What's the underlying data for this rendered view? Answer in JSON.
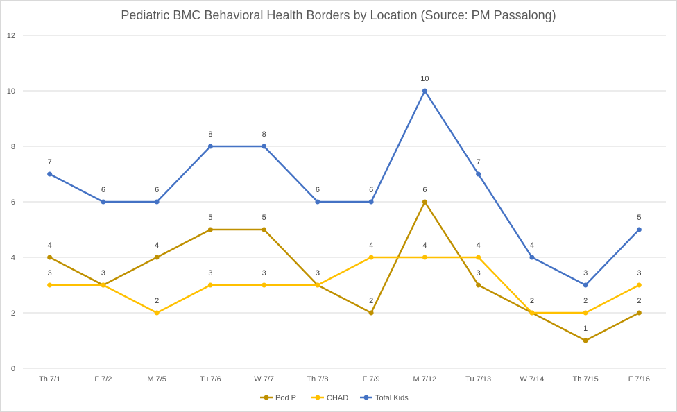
{
  "chart_data": {
    "type": "line",
    "title": "Pediatric BMC Behavioral Health Borders by Location (Source: PM Passalong)",
    "xlabel": "",
    "ylabel": "",
    "ylim": [
      0,
      12
    ],
    "yticks": [
      0,
      2,
      4,
      6,
      8,
      10,
      12
    ],
    "grid": true,
    "legend": "bottom",
    "categories": [
      "Th 7/1",
      "F 7/2",
      "M 7/5",
      "Tu 7/6",
      "W 7/7",
      "Th 7/8",
      "F 7/9",
      "M 7/12",
      "Tu 7/13",
      "W 7/14",
      "Th 7/15",
      "F 7/16"
    ],
    "series": [
      {
        "name": "Pod P",
        "color": "#bf9000",
        "values": [
          4,
          3,
          4,
          5,
          5,
          3,
          2,
          6,
          3,
          2,
          1,
          2
        ]
      },
      {
        "name": "CHAD",
        "color": "#ffc000",
        "values": [
          3,
          3,
          2,
          3,
          3,
          3,
          4,
          4,
          4,
          2,
          2,
          3
        ]
      },
      {
        "name": "Total Kids",
        "color": "#4472c4",
        "values": [
          7,
          6,
          6,
          8,
          8,
          6,
          6,
          10,
          7,
          4,
          3,
          5
        ]
      }
    ]
  }
}
